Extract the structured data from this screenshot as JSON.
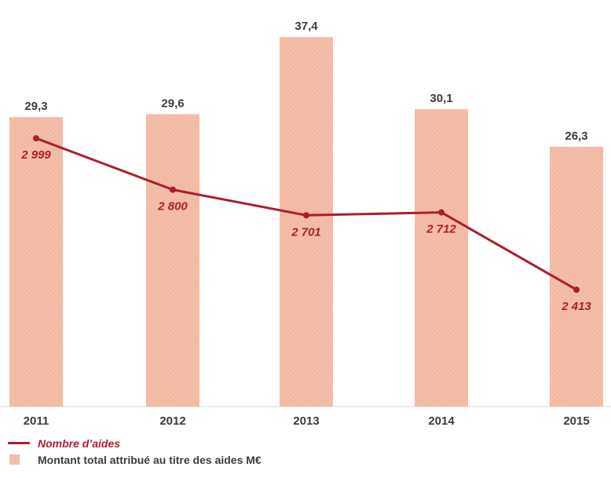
{
  "chart_data": {
    "type": "bar",
    "subtype": "combo-bar-line",
    "title": "",
    "xlabel": "",
    "ylabel": "",
    "grid": false,
    "legend_position": "bottom-left",
    "categories": [
      "2011",
      "2012",
      "2013",
      "2014",
      "2015"
    ],
    "series": [
      {
        "name": "Montant total attribué au titre des aides M€",
        "type": "bar",
        "values": [
          29.3,
          29.6,
          37.4,
          30.1,
          26.3
        ],
        "labels": [
          "29,3",
          "29,6",
          "37,4",
          "30,1",
          "26,3"
        ],
        "ylim": [
          0,
          40
        ]
      },
      {
        "name": "Nombre d’aides",
        "type": "line",
        "values": [
          2999,
          2800,
          2701,
          2712,
          2413
        ],
        "labels": [
          "2 999",
          "2 800",
          "2 701",
          "2 712",
          "2 413"
        ],
        "y2lim": [
          2000,
          3200
        ]
      }
    ]
  },
  "legend": {
    "line_label": "Nombre d’aides",
    "bar_label": "Montant total attribué au titre des aides M€"
  },
  "colors": {
    "bar": "#f4bda7",
    "bar_texture_dot": "#eeab92",
    "line": "#a81f2f",
    "text": "#3c3c3c",
    "axis_line": "#d6d6d6"
  }
}
